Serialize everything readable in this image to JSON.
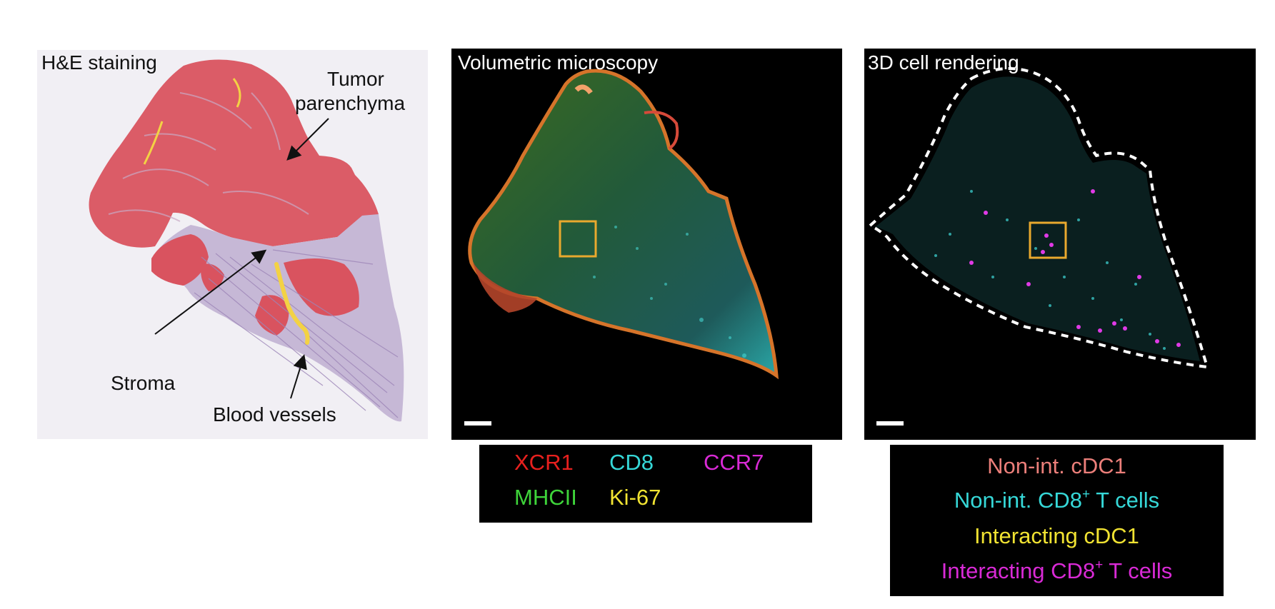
{
  "panels": {
    "he": {
      "title": "H&E staining"
    },
    "vol": {
      "title": "Volumetric microscopy"
    },
    "cell": {
      "title": "3D cell rendering"
    }
  },
  "annotations": {
    "tumor_line1": "Tumor",
    "tumor_line2": "parenchyma",
    "stroma": "Stroma",
    "blood_vessels": "Blood vessels"
  },
  "markers_legend": {
    "items": [
      {
        "label": "XCR1",
        "color": "#e8201e"
      },
      {
        "label": "CD8",
        "color": "#36d8d8"
      },
      {
        "label": "CCR7",
        "color": "#d92ad6"
      },
      {
        "label": "MHCII",
        "color": "#3ed43a"
      },
      {
        "label": "Ki-67",
        "color": "#f1e332"
      }
    ]
  },
  "cells_legend": {
    "items": [
      {
        "pre": "Non-int. cDC1",
        "sup": "",
        "post": "",
        "color": "#ec7f7a"
      },
      {
        "pre": "Non-int. CD8",
        "sup": "+",
        "post": " T cells",
        "color": "#36d8d8"
      },
      {
        "pre": "Interacting cDC1",
        "sup": "",
        "post": "",
        "color": "#f1e332"
      },
      {
        "pre": "Interacting CD8",
        "sup": "+",
        "post": " T cells",
        "color": "#d92ad6"
      }
    ]
  },
  "colors": {
    "tissue_stroma": "#c6b8d6",
    "tissue_tumor": "#d9535f",
    "vessel": "#f3d244",
    "roi_box": "#e9a92e"
  }
}
